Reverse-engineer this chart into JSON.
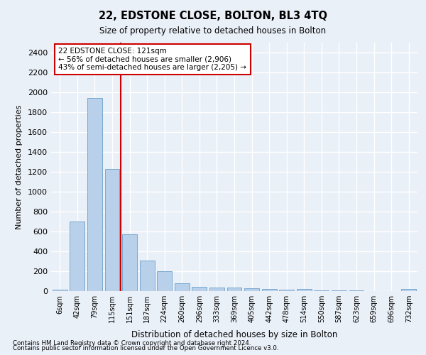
{
  "title": "22, EDSTONE CLOSE, BOLTON, BL3 4TQ",
  "subtitle": "Size of property relative to detached houses in Bolton",
  "xlabel": "Distribution of detached houses by size in Bolton",
  "ylabel": "Number of detached properties",
  "footer_line1": "Contains HM Land Registry data © Crown copyright and database right 2024.",
  "footer_line2": "Contains public sector information licensed under the Open Government Licence v3.0.",
  "bar_labels": [
    "6sqm",
    "42sqm",
    "79sqm",
    "115sqm",
    "151sqm",
    "187sqm",
    "224sqm",
    "260sqm",
    "296sqm",
    "333sqm",
    "369sqm",
    "405sqm",
    "442sqm",
    "478sqm",
    "514sqm",
    "550sqm",
    "587sqm",
    "623sqm",
    "659sqm",
    "696sqm",
    "732sqm"
  ],
  "bar_values": [
    15,
    700,
    1940,
    1230,
    570,
    305,
    200,
    80,
    45,
    38,
    35,
    28,
    20,
    15,
    22,
    8,
    5,
    5,
    3,
    3,
    22
  ],
  "bar_color": "#b8d0ea",
  "bar_edge_color": "#6a9fcb",
  "ylim": [
    0,
    2500
  ],
  "yticks": [
    0,
    200,
    400,
    600,
    800,
    1000,
    1200,
    1400,
    1600,
    1800,
    2000,
    2200,
    2400
  ],
  "property_bin_index": 3,
  "annotation_title": "22 EDSTONE CLOSE: 121sqm",
  "annotation_line1": "← 56% of detached houses are smaller (2,906)",
  "annotation_line2": "43% of semi-detached houses are larger (2,205) →",
  "red_line_color": "#cc0000",
  "annotation_box_color": "#ffffff",
  "annotation_box_edge_color": "#cc0000",
  "background_color": "#eaf0f8",
  "grid_color": "#ffffff"
}
